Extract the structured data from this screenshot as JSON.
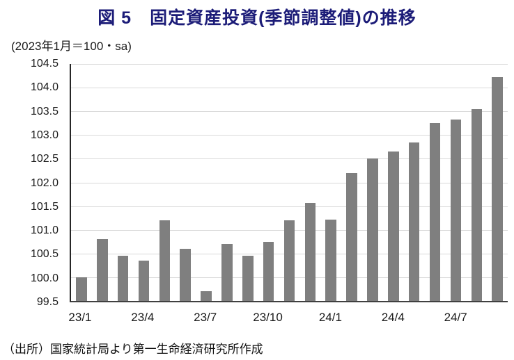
{
  "title": "図 5　固定資産投資(季節調整値)の推移",
  "source": "（出所）国家統計局より第一生命経済研究所作成",
  "chart_data": {
    "type": "bar",
    "title": "図 5　固定資産投資(季節調整値)の推移",
    "unit_label": "(2023年1月＝100・sa)",
    "categories": [
      "23/1",
      "23/2",
      "23/3",
      "23/4",
      "23/5",
      "23/6",
      "23/7",
      "23/8",
      "23/9",
      "23/10",
      "23/11",
      "23/12",
      "24/1",
      "24/2",
      "24/3",
      "24/4",
      "24/5",
      "24/6",
      "24/7",
      "24/8",
      "24/9"
    ],
    "values": [
      100.0,
      100.8,
      100.45,
      100.35,
      101.2,
      100.6,
      99.7,
      100.7,
      100.45,
      100.75,
      101.2,
      101.57,
      101.22,
      102.2,
      102.5,
      102.65,
      102.85,
      103.25,
      103.32,
      103.55,
      104.22
    ],
    "ylim": [
      99.5,
      104.5
    ],
    "y_ticks": [
      "104.5",
      "104.0",
      "103.5",
      "103.0",
      "102.5",
      "102.0",
      "101.5",
      "101.0",
      "100.5",
      "100.0",
      "99.5"
    ],
    "x_tick_labels": [
      {
        "index": 0,
        "label": "23/1"
      },
      {
        "index": 3,
        "label": "23/4"
      },
      {
        "index": 6,
        "label": "23/7"
      },
      {
        "index": 9,
        "label": "23/10"
      },
      {
        "index": 12,
        "label": "24/1"
      },
      {
        "index": 15,
        "label": "24/4"
      },
      {
        "index": 18,
        "label": "24/7"
      }
    ],
    "bar_color": "#7f7f7f",
    "gridline_color": "#d9d9d9",
    "grid": true,
    "legend": false,
    "xlabel": "",
    "ylabel": "",
    "source": "（出所）国家統計局より第一生命経済研究所作成"
  }
}
